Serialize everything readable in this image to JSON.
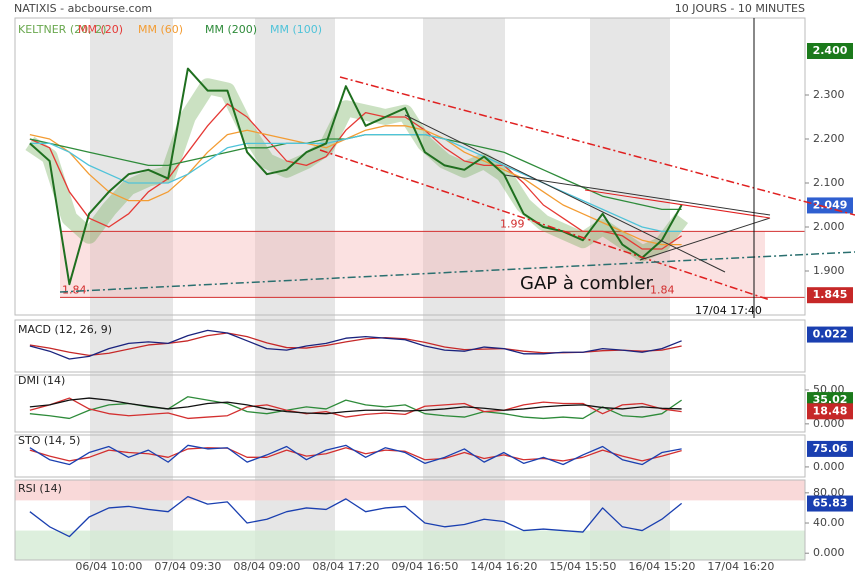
{
  "header": {
    "source": "NATIXIS - abcbourse.com",
    "period": "10 JOURS - 10 MINUTES"
  },
  "chart_data": [
    {
      "type": "line",
      "categories": [
        null,
        null,
        null,
        null,
        "06/04 10:00",
        null,
        null,
        null,
        "07/04 09:30",
        null,
        null,
        null,
        "08/04 09:00",
        null,
        null,
        null,
        "08/04 17:20",
        null,
        null,
        null,
        "09/04 16:50",
        null,
        null,
        null,
        "14/04 16:20",
        null,
        null,
        null,
        "15/04 15:50",
        null,
        null,
        null,
        "16/04 15:20",
        null,
        null,
        null,
        "17/04 16:20",
        null,
        null,
        null
      ],
      "ylim": [
        1.8,
        2.475
      ],
      "yticks": [
        {
          "value": 1.9,
          "label": "1.900"
        },
        {
          "value": 2.0,
          "label": "2.000"
        },
        {
          "value": 2.1,
          "label": "2.100"
        },
        {
          "value": 2.2,
          "label": "2.200"
        },
        {
          "value": 2.3,
          "label": "2.300"
        }
      ],
      "series": [
        {
          "name": "KELTNER (20, 2)",
          "color": "#6aa84f",
          "band": true,
          "values": [
            2.19,
            2.16,
            2.02,
            1.98,
            2.04,
            2.09,
            2.11,
            2.12,
            2.25,
            2.32,
            2.31,
            2.22,
            2.15,
            2.13,
            2.15,
            2.18,
            2.27,
            2.26,
            2.25,
            2.26,
            2.19,
            2.15,
            2.13,
            2.15,
            2.12,
            2.05,
            2.01,
            1.99,
            1.97,
            2.0,
            1.97,
            1.94,
            1.96,
            2.02,
            null,
            null,
            null,
            null,
            null,
            null
          ]
        },
        {
          "name": "MM (20)",
          "color": "#e53935",
          "values": [
            2.2,
            2.18,
            2.08,
            2.02,
            2.0,
            2.03,
            2.08,
            2.11,
            2.17,
            2.23,
            2.28,
            2.25,
            2.2,
            2.15,
            2.14,
            2.16,
            2.22,
            2.26,
            2.25,
            2.25,
            2.22,
            2.18,
            2.15,
            2.14,
            2.14,
            2.1,
            2.05,
            2.02,
            1.99,
            1.99,
            1.98,
            1.95,
            1.95,
            1.98,
            null,
            null,
            null,
            null,
            null,
            null
          ]
        },
        {
          "name": "MM (60)",
          "color": "#f39c33",
          "values": [
            2.21,
            2.2,
            2.17,
            2.12,
            2.08,
            2.06,
            2.06,
            2.08,
            2.12,
            2.17,
            2.21,
            2.22,
            2.21,
            2.2,
            2.19,
            2.18,
            2.2,
            2.22,
            2.23,
            2.23,
            2.22,
            2.2,
            2.17,
            2.15,
            2.13,
            2.11,
            2.08,
            2.05,
            2.03,
            2.01,
            1.99,
            1.97,
            1.96,
            1.96,
            null,
            null,
            null,
            null,
            null,
            null
          ]
        },
        {
          "name": "MM (200)",
          "color": "#2e8b3a",
          "values": [
            2.2,
            2.19,
            2.18,
            2.17,
            2.16,
            2.15,
            2.14,
            2.14,
            2.15,
            2.16,
            2.17,
            2.18,
            2.18,
            2.19,
            2.19,
            2.2,
            2.2,
            2.21,
            2.21,
            2.21,
            2.21,
            2.2,
            2.19,
            2.18,
            2.17,
            2.15,
            2.13,
            2.11,
            2.09,
            2.07,
            2.06,
            2.05,
            2.04,
            2.04,
            null,
            null,
            null,
            null,
            null,
            null
          ]
        },
        {
          "name": "MM (100)",
          "color": "#4fc3d9",
          "values": [
            2.19,
            2.19,
            2.17,
            2.14,
            2.12,
            2.1,
            2.1,
            2.1,
            2.12,
            2.15,
            2.18,
            2.19,
            2.19,
            2.19,
            2.19,
            2.19,
            2.2,
            2.21,
            2.21,
            2.21,
            2.21,
            2.2,
            2.18,
            2.16,
            2.14,
            2.12,
            2.1,
            2.08,
            2.06,
            2.04,
            2.02,
            2.0,
            1.99,
            1.99,
            null,
            null,
            null,
            null,
            null,
            null
          ]
        },
        {
          "color": "#1f6f1f",
          "values": [
            2.19,
            2.15,
            1.87,
            2.03,
            2.08,
            2.12,
            2.13,
            2.11,
            2.36,
            2.31,
            2.31,
            2.17,
            2.12,
            2.13,
            2.17,
            2.19,
            2.32,
            2.23,
            2.25,
            2.27,
            2.17,
            2.14,
            2.13,
            2.16,
            2.12,
            2.03,
            2.0,
            1.99,
            1.97,
            2.03,
            1.96,
            1.93,
            1.97,
            2.05,
            null,
            null,
            null,
            null,
            null,
            null
          ]
        }
      ],
      "levels": [
        {
          "value": 1.99,
          "label": "1.99"
        },
        {
          "value": 1.84,
          "label": "1.84"
        }
      ],
      "boxes": [
        {
          "value": 2.4,
          "label": "2.400",
          "color": "#1b7a1b"
        },
        {
          "value": 2.049,
          "label": "2.049",
          "color": "#2f5fd0"
        },
        {
          "value": 1.845,
          "label": "1.845",
          "color": "#c62828"
        }
      ],
      "annotations": [
        "GAP à combler",
        "17/04 17:40"
      ]
    },
    {
      "type": "line",
      "title": "MACD (12, 26, 9)",
      "ylim": [
        -0.05,
        0.05
      ],
      "yticks": [],
      "series": [
        {
          "color": "#c62828",
          "values": [
            0.002,
            -0.004,
            -0.012,
            -0.018,
            -0.014,
            -0.006,
            0.002,
            0.005,
            0.01,
            0.02,
            0.025,
            0.018,
            0.006,
            -0.003,
            -0.004,
            0.001,
            0.008,
            0.014,
            0.016,
            0.014,
            0.007,
            -0.002,
            -0.007,
            -0.006,
            -0.005,
            -0.01,
            -0.013,
            -0.013,
            -0.012,
            -0.009,
            -0.008,
            -0.01,
            -0.008,
            0.0,
            null,
            null,
            null,
            null,
            null,
            null
          ]
        },
        {
          "color": "#1a237e",
          "values": [
            0.0,
            -0.01,
            -0.025,
            -0.02,
            -0.005,
            0.005,
            0.008,
            0.005,
            0.02,
            0.03,
            0.025,
            0.01,
            -0.005,
            -0.008,
            0.0,
            0.005,
            0.015,
            0.018,
            0.015,
            0.012,
            0.0,
            -0.008,
            -0.01,
            -0.002,
            -0.005,
            -0.015,
            -0.015,
            -0.012,
            -0.012,
            -0.005,
            -0.008,
            -0.012,
            -0.005,
            0.01,
            null,
            null,
            null,
            null,
            null,
            null
          ]
        }
      ],
      "boxes": [
        {
          "value": 0.022,
          "label": "0.022",
          "color": "#1a3fb0"
        }
      ]
    },
    {
      "type": "line",
      "title": "DMI (14)",
      "ylim": [
        -12,
        72
      ],
      "yticks": [
        {
          "value": 0,
          "label": "0.000"
        },
        {
          "value": 50,
          "label": "50.00"
        }
      ],
      "series": [
        {
          "color": "#2e8b3a",
          "values": [
            15,
            12,
            8,
            20,
            28,
            30,
            25,
            22,
            40,
            35,
            30,
            18,
            15,
            20,
            25,
            22,
            35,
            28,
            25,
            28,
            15,
            12,
            10,
            18,
            15,
            10,
            8,
            10,
            8,
            25,
            12,
            10,
            15,
            35,
            null,
            null,
            null,
            null,
            null,
            null
          ]
        },
        {
          "color": "#d32f2f",
          "values": [
            20,
            28,
            38,
            22,
            15,
            12,
            14,
            16,
            8,
            10,
            12,
            25,
            28,
            20,
            15,
            18,
            10,
            14,
            16,
            14,
            26,
            28,
            30,
            18,
            20,
            28,
            32,
            30,
            30,
            15,
            28,
            30,
            22,
            18,
            null,
            null,
            null,
            null,
            null,
            null
          ]
        },
        {
          "color": "#111111",
          "values": [
            25,
            28,
            35,
            38,
            35,
            30,
            26,
            22,
            25,
            30,
            32,
            28,
            22,
            18,
            16,
            15,
            18,
            20,
            20,
            19,
            20,
            22,
            25,
            23,
            20,
            22,
            25,
            27,
            28,
            24,
            22,
            25,
            23,
            22,
            null,
            null,
            null,
            null,
            null,
            null
          ]
        }
      ],
      "boxes": [
        {
          "value": 35.02,
          "label": "35.02",
          "color": "#1b7a1b"
        },
        {
          "value": 18.48,
          "label": "18.48",
          "color": "#c62828"
        }
      ]
    },
    {
      "type": "line",
      "title": "STO (14, 5)",
      "ylim": [
        -42,
        133
      ],
      "yticks": [
        {
          "value": 0,
          "label": "0.000"
        }
      ],
      "series": [
        {
          "color": "#d32f2f",
          "values": [
            70,
            45,
            25,
            40,
            70,
            60,
            55,
            40,
            75,
            80,
            78,
            40,
            40,
            70,
            45,
            55,
            80,
            55,
            70,
            65,
            30,
            35,
            60,
            35,
            50,
            30,
            35,
            25,
            40,
            70,
            45,
            25,
            45,
            68,
            null,
            null,
            null,
            null,
            null,
            null
          ]
        },
        {
          "color": "#1a3fb0",
          "values": [
            80,
            30,
            10,
            60,
            85,
            40,
            70,
            20,
            90,
            75,
            80,
            20,
            50,
            85,
            30,
            70,
            90,
            40,
            80,
            60,
            15,
            40,
            75,
            20,
            60,
            15,
            40,
            10,
            50,
            85,
            30,
            10,
            60,
            75,
            null,
            null,
            null,
            null,
            null,
            null
          ]
        }
      ],
      "boxes": [
        {
          "value": 75.06,
          "label": "75.06",
          "color": "#1a3fb0"
        }
      ]
    },
    {
      "type": "line",
      "title": "RSI (14)",
      "ylim": [
        -9,
        97
      ],
      "yticks": [
        {
          "value": 0,
          "label": "0.000"
        },
        {
          "value": 40,
          "label": "40.00"
        },
        {
          "value": 80,
          "label": "80.00"
        }
      ],
      "zones": [
        {
          "from": 70,
          "to": 97,
          "color": "#f8d0d0"
        },
        {
          "from": -9,
          "to": 30,
          "color": "#d4ebd4"
        }
      ],
      "series": [
        {
          "color": "#1a3fb0",
          "values": [
            55,
            35,
            22,
            48,
            60,
            62,
            58,
            55,
            75,
            65,
            68,
            40,
            45,
            55,
            60,
            58,
            72,
            55,
            60,
            62,
            40,
            35,
            38,
            45,
            42,
            30,
            32,
            30,
            28,
            60,
            35,
            30,
            45,
            66,
            null,
            null,
            null,
            null,
            null,
            null
          ]
        }
      ],
      "boxes": [
        {
          "value": 65.83,
          "label": "65.83",
          "color": "#1a3fb0"
        }
      ]
    }
  ]
}
